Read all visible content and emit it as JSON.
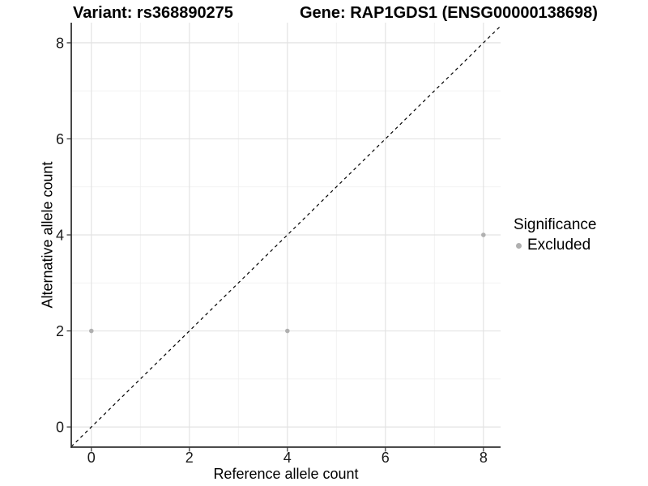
{
  "header": {
    "variant_title": "Variant: rs368890275",
    "gene_title": "Gene: RAP1GDS1 (ENSG00000138698)"
  },
  "chart_data": {
    "type": "scatter",
    "titles": {
      "left": "Variant: rs368890275",
      "right": "Gene: RAP1GDS1 (ENSG00000138698)"
    },
    "xlabel": "Reference allele count",
    "ylabel": "Alternative allele count",
    "xlim": [
      -0.41,
      8.35
    ],
    "ylim": [
      -0.42,
      8.42
    ],
    "x_ticks": [
      0,
      2,
      4,
      6,
      8
    ],
    "y_ticks": [
      0,
      2,
      4,
      6,
      8
    ],
    "minor_x_ticks": [
      1,
      3,
      5,
      7
    ],
    "minor_y_ticks": [
      1,
      3,
      5,
      7
    ],
    "grid": "major and minor, light gray on white",
    "legend_position": "right",
    "legend_title": "Significance",
    "series": [
      {
        "name": "Excluded",
        "color": "#b0b0b0",
        "points": [
          {
            "x": 0,
            "y": 2
          },
          {
            "x": 4,
            "y": 2
          },
          {
            "x": 8,
            "y": 4
          }
        ]
      }
    ],
    "reference_line": {
      "kind": "identity y=x",
      "linetype": "dashed",
      "color": "#000000"
    }
  },
  "colors": {
    "background": "#ffffff",
    "grid_major": "#e3e3e3",
    "grid_minor": "#f0f0f0",
    "axis_line": "#333333",
    "tick_mark": "#333333",
    "text": "#000000",
    "point": "#b0b0b0"
  }
}
